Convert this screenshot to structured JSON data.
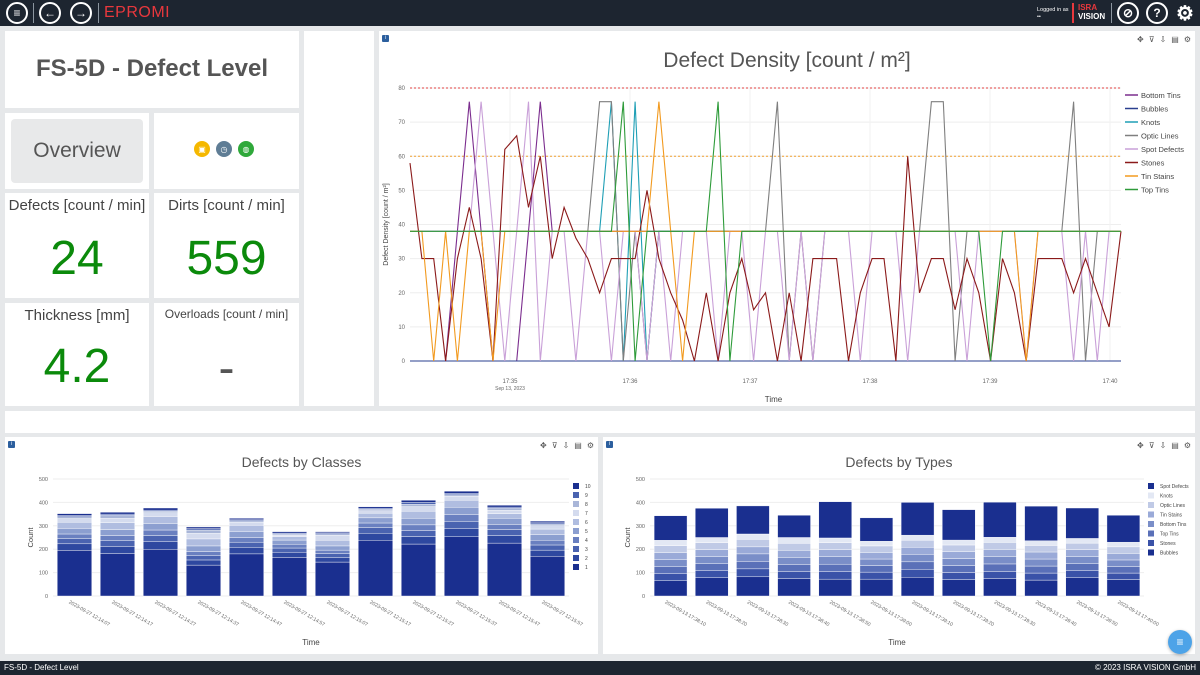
{
  "app": {
    "title": "EPROMI",
    "logged_in_label": "Logged in as",
    "logged_in_user": "••",
    "logo_line1": "ISRA",
    "logo_line2": "VISION",
    "icons": [
      "menu-icon",
      "back-icon",
      "forward-icon",
      "visibility-off-icon",
      "help-icon",
      "settings-icon"
    ]
  },
  "header": {
    "title": "FS-5D - Defect Level"
  },
  "overview_button": "Overview",
  "status_icons": [
    {
      "name": "calendar-icon",
      "color": "#f5b800"
    },
    {
      "name": "clock-icon",
      "color": "#5f7d95"
    },
    {
      "name": "globe-icon",
      "color": "#2fa83a"
    }
  ],
  "kpis": [
    {
      "label": "Defects [count / min]",
      "value": "24"
    },
    {
      "label": "Dirts [count / min]",
      "value": "559"
    },
    {
      "label": "Thickness [mm]",
      "value": "4.2"
    },
    {
      "label": "Overloads [count / min]",
      "value": "-"
    }
  ],
  "density_chart": {
    "chart_data": {
      "type": "line",
      "title": "Defect Density [count / m²]",
      "xlabel": "Time",
      "ylabel": "Defect Density [count / m²]",
      "ylim": [
        0,
        80
      ],
      "yticks": [
        0,
        10,
        20,
        30,
        40,
        50,
        60,
        70,
        80
      ],
      "xticks": [
        "17:35",
        "17:36",
        "17:37",
        "17:38",
        "17:39",
        "17:40"
      ],
      "x_sublabel": "Sep 13, 2023",
      "threshold_lines": [
        {
          "value": 80,
          "color": "#e04040"
        },
        {
          "value": 60,
          "color": "#f0a030"
        }
      ],
      "x": [
        0,
        0.3,
        0.6,
        0.9,
        1.2,
        1.5,
        1.8,
        2.1,
        2.4,
        2.7,
        3.0,
        3.3,
        3.6,
        3.9,
        4.2,
        4.5,
        4.8,
        5.1,
        5.4,
        5.7,
        6.0,
        6.3,
        6.6,
        6.9,
        7.2,
        7.5,
        7.8,
        8.1,
        8.4,
        8.7,
        9.0,
        9.3,
        9.6,
        9.9,
        10.2,
        10.5,
        10.8,
        11.1,
        11.4,
        11.7,
        12.0,
        12.3,
        12.6,
        12.9,
        13.2,
        13.5,
        13.8,
        14.1,
        14.4,
        14.7,
        15.0,
        15.3,
        15.6,
        15.9,
        16.2,
        16.5,
        16.8,
        17.1,
        17.4,
        17.7,
        18.0
      ],
      "series": [
        {
          "name": "Bottom Tins",
          "color": "#7b2d8e",
          "values": [
            0,
            0,
            0,
            0,
            38,
            76,
            38,
            0,
            0,
            0,
            38,
            76,
            38,
            38,
            38,
            38,
            38,
            38,
            38,
            38,
            38,
            38,
            38,
            38,
            38,
            38,
            38,
            38,
            38,
            38,
            38,
            38,
            38,
            38,
            38,
            38,
            38,
            38,
            38,
            38,
            38,
            38,
            38,
            38,
            38,
            38,
            38,
            38,
            38,
            38,
            38,
            38,
            38,
            38,
            38,
            38,
            38,
            38,
            38,
            38,
            38
          ]
        },
        {
          "name": "Bubbles",
          "color": "#2a3f8f",
          "values": [
            0,
            0,
            0,
            0,
            0,
            0,
            0,
            0,
            0,
            0,
            0,
            0,
            0,
            0,
            0,
            0,
            0,
            0,
            0,
            0,
            0,
            0,
            0,
            0,
            0,
            0,
            0,
            0,
            0,
            0,
            0,
            0,
            0,
            0,
            0,
            0,
            0,
            0,
            0,
            0,
            0,
            0,
            0,
            0,
            0,
            0,
            0,
            0,
            0,
            0,
            0,
            0,
            0,
            0,
            0,
            0,
            0,
            0,
            0,
            0,
            0
          ]
        },
        {
          "name": "Knots",
          "color": "#1f9fb5",
          "values": [
            38,
            38,
            38,
            38,
            38,
            38,
            38,
            38,
            38,
            38,
            38,
            38,
            38,
            38,
            38,
            38,
            38,
            76,
            0,
            76,
            0,
            38,
            38,
            38,
            38,
            38,
            38,
            38,
            38,
            38,
            38,
            38,
            38,
            38,
            38,
            38,
            38,
            38,
            38,
            38,
            38,
            38,
            38,
            38,
            38,
            38,
            38,
            38,
            38,
            38,
            38,
            38,
            38,
            38,
            38,
            38,
            38,
            38,
            38,
            38,
            38
          ]
        },
        {
          "name": "Optic Lines",
          "color": "#7f7f7f",
          "values": [
            38,
            38,
            38,
            38,
            38,
            38,
            38,
            38,
            38,
            38,
            38,
            38,
            38,
            38,
            38,
            38,
            76,
            76,
            0,
            38,
            0,
            38,
            38,
            38,
            38,
            38,
            38,
            38,
            38,
            38,
            38,
            76,
            0,
            38,
            0,
            38,
            38,
            38,
            38,
            38,
            38,
            38,
            38,
            38,
            76,
            76,
            0,
            38,
            38,
            38,
            38,
            38,
            38,
            38,
            38,
            38,
            76,
            0,
            38,
            38,
            38
          ]
        },
        {
          "name": "Spot Defects",
          "color": "#c9a0d8",
          "values": [
            38,
            38,
            38,
            38,
            38,
            38,
            76,
            38,
            0,
            38,
            76,
            0,
            38,
            38,
            0,
            38,
            38,
            0,
            38,
            38,
            0,
            38,
            0,
            38,
            38,
            38,
            0,
            38,
            38,
            0,
            38,
            38,
            0,
            38,
            0,
            38,
            38,
            38,
            0,
            38,
            38,
            38,
            0,
            38,
            38,
            38,
            38,
            0,
            38,
            38,
            38,
            38,
            0,
            38,
            38,
            38,
            0,
            38,
            0,
            38,
            38
          ]
        },
        {
          "name": "Stones",
          "color": "#8b1a1a",
          "values": [
            58,
            30,
            30,
            0,
            30,
            45,
            30,
            0,
            62,
            66,
            45,
            60,
            30,
            45,
            36,
            30,
            20,
            30,
            30,
            30,
            50,
            30,
            20,
            12,
            0,
            20,
            0,
            20,
            30,
            15,
            20,
            0,
            20,
            0,
            30,
            30,
            30,
            0,
            20,
            30,
            30,
            0,
            60,
            20,
            30,
            30,
            15,
            30,
            20,
            0,
            30,
            20,
            0,
            30,
            30,
            30,
            20,
            30,
            20,
            10,
            38
          ]
        },
        {
          "name": "Tin Stains",
          "color": "#f29a1f",
          "values": [
            38,
            38,
            0,
            38,
            0,
            38,
            38,
            0,
            38,
            38,
            38,
            38,
            38,
            38,
            38,
            38,
            38,
            38,
            38,
            38,
            38,
            76,
            38,
            0,
            38,
            38,
            38,
            38,
            38,
            38,
            38,
            38,
            38,
            38,
            38,
            38,
            38,
            38,
            38,
            38,
            38,
            38,
            38,
            38,
            38,
            38,
            38,
            38,
            38,
            38,
            38,
            38,
            0,
            38,
            38,
            38,
            38,
            38,
            38,
            38,
            38
          ]
        },
        {
          "name": "Top Tins",
          "color": "#2e9b3a",
          "values": [
            38,
            38,
            38,
            38,
            38,
            38,
            38,
            38,
            38,
            38,
            38,
            38,
            38,
            38,
            38,
            38,
            38,
            38,
            76,
            0,
            38,
            38,
            38,
            38,
            38,
            38,
            76,
            0,
            38,
            38,
            38,
            38,
            38,
            38,
            38,
            38,
            38,
            38,
            38,
            38,
            38,
            38,
            38,
            38,
            38,
            38,
            38,
            38,
            38,
            0,
            38,
            38,
            38,
            38,
            38,
            38,
            38,
            38,
            38,
            38,
            38
          ]
        }
      ]
    }
  },
  "classes_chart": {
    "chart_data": {
      "type": "bar",
      "stacked": true,
      "title": "Defects by Classes",
      "xlabel": "Time",
      "ylabel": "Count",
      "ylim": [
        0,
        500
      ],
      "yticks": [
        0,
        100,
        200,
        300,
        400,
        500
      ],
      "categories": [
        "2023-09-27 12:14:07",
        "2023-09-27 12:14:17",
        "2023-09-27 12:14:27",
        "2023-09-27 12:14:37",
        "2023-09-27 12:14:47",
        "2023-09-27 12:14:57",
        "2023-09-27 12:15:07",
        "2023-09-27 12:15:17",
        "2023-09-27 12:15:27",
        "2023-09-27 12:15:37",
        "2023-09-27 12:15:47",
        "2023-09-27 12:15:57"
      ],
      "series": [
        {
          "name": "1",
          "color": "#1a2f8f",
          "values": [
            195,
            182,
            200,
            132,
            180,
            165,
            145,
            238,
            222,
            253,
            226,
            170
          ]
        },
        {
          "name": "2",
          "color": "#2e48a0",
          "values": [
            28,
            30,
            32,
            22,
            28,
            22,
            20,
            30,
            32,
            36,
            32,
            26
          ]
        },
        {
          "name": "3",
          "color": "#4a63b0",
          "values": [
            22,
            24,
            26,
            18,
            22,
            18,
            16,
            24,
            26,
            30,
            26,
            22
          ]
        },
        {
          "name": "4",
          "color": "#6a80c0",
          "values": [
            20,
            22,
            24,
            18,
            20,
            16,
            15,
            20,
            24,
            28,
            22,
            20
          ]
        },
        {
          "name": "5",
          "color": "#8c9fd0",
          "values": [
            24,
            26,
            28,
            24,
            26,
            18,
            18,
            22,
            28,
            32,
            26,
            24
          ]
        },
        {
          "name": "6",
          "color": "#b0bde0",
          "values": [
            26,
            30,
            30,
            30,
            26,
            14,
            24,
            20,
            30,
            30,
            20,
            24
          ]
        },
        {
          "name": "7",
          "color": "#d4dbee",
          "values": [
            16,
            18,
            16,
            24,
            14,
            6,
            22,
            10,
            20,
            18,
            14,
            14
          ]
        },
        {
          "name": "8",
          "color": "#a9b6d8",
          "values": [
            8,
            12,
            6,
            14,
            6,
            6,
            6,
            6,
            10,
            6,
            8,
            8
          ]
        },
        {
          "name": "9",
          "color": "#4a63b0",
          "values": [
            5,
            6,
            5,
            6,
            4,
            4,
            4,
            5,
            8,
            6,
            6,
            5
          ]
        },
        {
          "name": "10",
          "color": "#1a2f8f",
          "values": [
            8,
            8,
            9,
            7,
            6,
            6,
            5,
            6,
            9,
            9,
            8,
            7
          ]
        }
      ]
    }
  },
  "types_chart": {
    "chart_data": {
      "type": "bar",
      "stacked": true,
      "title": "Defects by Types",
      "xlabel": "Time",
      "ylabel": "Count",
      "ylim": [
        0,
        500
      ],
      "yticks": [
        0,
        100,
        200,
        300,
        400,
        500
      ],
      "categories": [
        "2023-09-13 17:38:10",
        "2023-09-13 17:38:20",
        "2023-09-13 17:38:30",
        "2023-09-13 17:38:40",
        "2023-09-13 17:38:50",
        "2023-09-13 17:39:00",
        "2023-09-13 17:39:10",
        "2023-09-13 17:39:20",
        "2023-09-13 17:39:30",
        "2023-09-13 17:39:40",
        "2023-09-13 17:39:50",
        "2023-09-13 17:40:00"
      ],
      "series": [
        {
          "name": "Bubbles",
          "color": "#1a2f8f",
          "values": [
            65,
            78,
            82,
            75,
            72,
            72,
            80,
            70,
            75,
            68,
            78,
            70
          ]
        },
        {
          "name": "Stones",
          "color": "#3a52a8",
          "values": [
            30,
            30,
            34,
            30,
            32,
            30,
            34,
            30,
            30,
            30,
            30,
            28
          ]
        },
        {
          "name": "Top Tins",
          "color": "#5a70b8",
          "values": [
            30,
            30,
            32,
            30,
            32,
            28,
            32,
            30,
            32,
            30,
            30,
            28
          ]
        },
        {
          "name": "Bottom Tins",
          "color": "#7a8ec8",
          "values": [
            30,
            30,
            32,
            30,
            32,
            28,
            32,
            30,
            32,
            30,
            30,
            28
          ]
        },
        {
          "name": "Tin Stains",
          "color": "#9aaad8",
          "values": [
            30,
            30,
            30,
            30,
            30,
            28,
            30,
            30,
            30,
            30,
            30,
            28
          ]
        },
        {
          "name": "Optic Lines",
          "color": "#c0cae6",
          "values": [
            30,
            30,
            32,
            30,
            30,
            28,
            30,
            28,
            30,
            28,
            28,
            28
          ]
        },
        {
          "name": "Knots",
          "color": "#e3e8f4",
          "values": [
            23,
            22,
            23,
            25,
            20,
            20,
            22,
            21,
            22,
            20,
            20,
            20
          ]
        },
        {
          "name": "Spot Defects",
          "color": "#1a2f8f",
          "values": [
            105,
            125,
            120,
            95,
            155,
            100,
            140,
            130,
            150,
            148,
            130,
            115
          ]
        }
      ]
    }
  },
  "footer": {
    "left": "FS-5D - Defect Level",
    "right": "© 2023 ISRA VISION GmbH"
  }
}
